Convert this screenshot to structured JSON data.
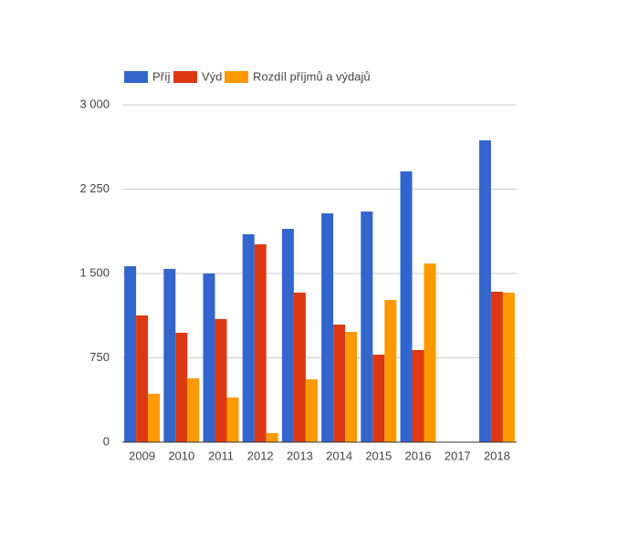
{
  "chart_data": {
    "type": "bar",
    "categories": [
      "2009",
      "2010",
      "2011",
      "2012",
      "2013",
      "2014",
      "2015",
      "2016",
      "2017",
      "2018"
    ],
    "series": [
      {
        "name": "Příj",
        "color": "#3366cc",
        "values": [
          1565,
          1541,
          1500,
          1849,
          1897,
          2035,
          2051,
          2408,
          0,
          2684
        ]
      },
      {
        "name": "Výd",
        "color": "#dc3912",
        "values": [
          1127,
          973,
          1095,
          1760,
          1330,
          1046,
          778,
          819,
          0,
          1338
        ]
      },
      {
        "name": "Rozdíl příjmů a výdajů",
        "color": "#ff9900",
        "values": [
          430,
          568,
          397,
          81,
          559,
          981,
          1265,
          1589,
          0,
          1330
        ]
      }
    ],
    "ylim": [
      0,
      3000
    ],
    "yticks": [
      0,
      750,
      {
        "value": 1500,
        "label": "1 500"
      },
      {
        "value": 2250,
        "label": "2 250"
      },
      {
        "value": 3000,
        "label": "3 000"
      }
    ],
    "grid": true,
    "legend": "top"
  }
}
